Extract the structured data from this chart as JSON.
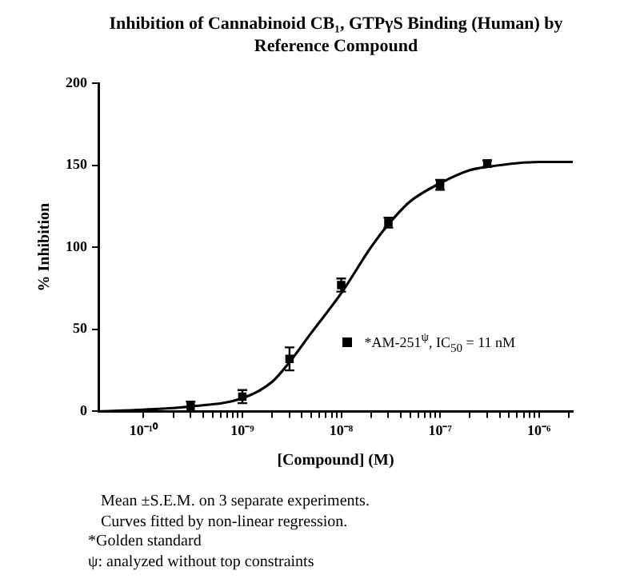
{
  "chart_data": {
    "type": "scatter",
    "title": "Inhibition of Cannabinoid CB₁, GTPγS Binding (Human) by Reference Compound",
    "xlabel": "[Compound] (M)",
    "ylabel": "% Inhibition",
    "log": "x",
    "marker": "square",
    "legend": "bottom right",
    "xlim": [
      3.5e-11,
      2.2e-06
    ],
    "xticks": [
      {
        "value": 1e-10,
        "label": "10⁻¹⁰"
      },
      {
        "value": 2e-10,
        "label": null
      },
      {
        "value": 3e-10,
        "label": null
      },
      {
        "value": 4e-10,
        "label": null
      },
      {
        "value": 5e-10,
        "label": null
      },
      {
        "value": 6e-10,
        "label": null
      },
      {
        "value": 7e-10,
        "label": null
      },
      {
        "value": 8e-10,
        "label": null
      },
      {
        "value": 9e-10,
        "label": null
      },
      {
        "value": 1e-09,
        "label": "10⁻⁹"
      },
      {
        "value": 2e-09,
        "label": null
      },
      {
        "value": 3e-09,
        "label": null
      },
      {
        "value": 4e-09,
        "label": null
      },
      {
        "value": 5e-09,
        "label": null
      },
      {
        "value": 6e-09,
        "label": null
      },
      {
        "value": 7e-09,
        "label": null
      },
      {
        "value": 8e-09,
        "label": null
      },
      {
        "value": 9e-09,
        "label": null
      },
      {
        "value": 1e-08,
        "label": "10⁻⁸"
      },
      {
        "value": 2e-08,
        "label": null
      },
      {
        "value": 3e-08,
        "label": null
      },
      {
        "value": 4e-08,
        "label": null
      },
      {
        "value": 5e-08,
        "label": null
      },
      {
        "value": 6e-08,
        "label": null
      },
      {
        "value": 7e-08,
        "label": null
      },
      {
        "value": 8e-08,
        "label": null
      },
      {
        "value": 9e-08,
        "label": null
      },
      {
        "value": 1e-07,
        "label": "10⁻⁷"
      },
      {
        "value": 2e-07,
        "label": null
      },
      {
        "value": 3e-07,
        "label": null
      },
      {
        "value": 4e-07,
        "label": null
      },
      {
        "value": 5e-07,
        "label": null
      },
      {
        "value": 6e-07,
        "label": null
      },
      {
        "value": 7e-07,
        "label": null
      },
      {
        "value": 8e-07,
        "label": null
      },
      {
        "value": 9e-07,
        "label": null
      },
      {
        "value": 1e-06,
        "label": "10⁻⁶"
      },
      {
        "value": 2e-06,
        "label": null
      }
    ],
    "ylim": [
      0,
      200
    ],
    "yticks": [
      0,
      50,
      100,
      150,
      200
    ],
    "series": [
      {
        "name": "*AM-251$^{ψ}$, IC$_{50}$ = 11  nM",
        "color": "#000000",
        "x": [
          3e-10,
          1e-09,
          3e-09,
          1e-08,
          3e-08,
          1e-07,
          3e-07
        ],
        "values": [
          3,
          9,
          32,
          77,
          115,
          138,
          151
        ],
        "errors": [
          3,
          4,
          7,
          4,
          3,
          3,
          2
        ]
      },
      {
        "type": "line",
        "marker": "none",
        "color": "#000000",
        "x": [
          3.5e-11,
          1e-10,
          3e-10,
          1e-09,
          2e-09,
          3e-09,
          5e-09,
          1e-08,
          2e-08,
          3e-08,
          5e-08,
          1e-07,
          2e-07,
          3e-07,
          1e-06,
          2.2e-06
        ],
        "values": [
          0,
          1,
          3,
          8,
          18,
          30,
          48,
          72,
          100,
          114,
          128,
          139,
          147,
          149,
          152,
          152
        ]
      }
    ],
    "annotations": [
      "Mean ±S.E.M. on 3 separate experiments.",
      "Curves fitted by non-linear regression.",
      "*Golden standard",
      "ψ: analyzed without top constraints"
    ]
  }
}
